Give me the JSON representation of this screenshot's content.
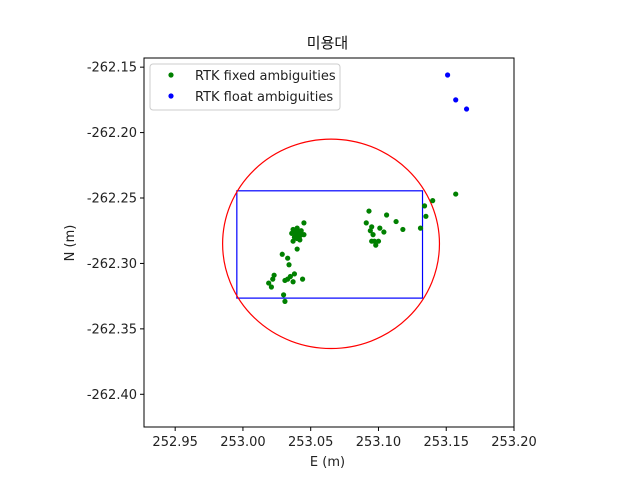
{
  "chart_data": {
    "type": "scatter",
    "title": "미용대",
    "xlabel": "E (m)",
    "ylabel": "N (m)",
    "xlim": [
      252.927,
      253.2
    ],
    "ylim": [
      -262.425,
      -262.143
    ],
    "x_ticks": [
      252.95,
      253.0,
      253.05,
      253.1,
      253.15,
      253.2
    ],
    "x_tick_labels": [
      "252.95",
      "253.00",
      "253.05",
      "253.10",
      "253.15",
      "253.20"
    ],
    "y_ticks": [
      -262.15,
      -262.2,
      -262.25,
      -262.3,
      -262.35,
      -262.4
    ],
    "y_tick_labels": [
      "-262.15",
      "-262.20",
      "-262.25",
      "-262.30",
      "-262.35",
      "-262.40"
    ],
    "grid": false,
    "legend_position": "top-left",
    "series": [
      {
        "name": "RTK fixed ambiguities",
        "color": "#008000",
        "points": [
          [
            253.019,
            -262.315
          ],
          [
            253.021,
            -262.318
          ],
          [
            253.022,
            -262.312
          ],
          [
            253.023,
            -262.309
          ],
          [
            253.029,
            -262.293
          ],
          [
            253.03,
            -262.324
          ],
          [
            253.031,
            -262.313
          ],
          [
            253.031,
            -262.329
          ],
          [
            253.033,
            -262.296
          ],
          [
            253.033,
            -262.312
          ],
          [
            253.034,
            -262.301
          ],
          [
            253.035,
            -262.31
          ],
          [
            253.036,
            -262.277
          ],
          [
            253.037,
            -262.274
          ],
          [
            253.037,
            -262.283
          ],
          [
            253.037,
            -262.314
          ],
          [
            253.038,
            -262.275
          ],
          [
            253.038,
            -262.28
          ],
          [
            253.038,
            -262.308
          ],
          [
            253.039,
            -262.277
          ],
          [
            253.04,
            -262.273
          ],
          [
            253.04,
            -262.278
          ],
          [
            253.04,
            -262.281
          ],
          [
            253.04,
            -262.289
          ],
          [
            253.041,
            -262.276
          ],
          [
            253.042,
            -262.279
          ],
          [
            253.042,
            -262.282
          ],
          [
            253.043,
            -262.275
          ],
          [
            253.043,
            -262.278
          ],
          [
            253.044,
            -262.312
          ],
          [
            253.045,
            -262.269
          ],
          [
            253.045,
            -262.278
          ],
          [
            253.091,
            -262.269
          ],
          [
            253.093,
            -262.26
          ],
          [
            253.094,
            -262.275
          ],
          [
            253.095,
            -262.272
          ],
          [
            253.095,
            -262.283
          ],
          [
            253.096,
            -262.278
          ],
          [
            253.097,
            -262.283
          ],
          [
            253.098,
            -262.286
          ],
          [
            253.1,
            -262.283
          ],
          [
            253.101,
            -262.273
          ],
          [
            253.104,
            -262.276
          ],
          [
            253.106,
            -262.263
          ],
          [
            253.113,
            -262.268
          ],
          [
            253.118,
            -262.274
          ],
          [
            253.131,
            -262.273
          ],
          [
            253.134,
            -262.256
          ],
          [
            253.135,
            -262.264
          ],
          [
            253.14,
            -262.252
          ],
          [
            253.157,
            -262.247
          ]
        ]
      },
      {
        "name": "RTK float ambiguities",
        "color": "#0000ff",
        "points": [
          [
            253.151,
            -262.156
          ],
          [
            253.157,
            -262.175
          ],
          [
            253.165,
            -262.182
          ]
        ]
      }
    ],
    "circle": {
      "center": [
        253.065,
        -262.285
      ],
      "radius": 0.08,
      "color": "#ff0000"
    },
    "rectangle": {
      "x": [
        252.9955,
        253.1325
      ],
      "y": [
        -262.3265,
        -262.2445
      ],
      "color": "#0000ff"
    }
  }
}
